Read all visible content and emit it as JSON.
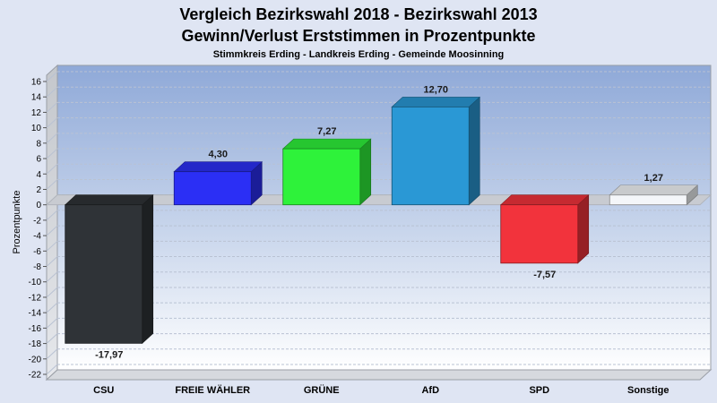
{
  "chart_data": {
    "type": "bar",
    "title": "Vergleich Bezirkswahl 2018 - Bezirkswahl 2013",
    "subtitle": "Gewinn/Verlust Erststimmen in Prozentpunkte",
    "caption": "Stimmkreis Erding - Landkreis Erding - Gemeinde Moosinning",
    "ylabel": "Prozentpunkte",
    "xlabel": "",
    "ylim": [
      -22,
      16
    ],
    "yticks": [
      16,
      14,
      12,
      10,
      8,
      6,
      4,
      2,
      0,
      -2,
      -4,
      -6,
      -8,
      -10,
      -12,
      -14,
      -16,
      -18,
      -20,
      -22
    ],
    "grid": true,
    "legend": "none",
    "categories": [
      "CSU",
      "FREIE WÄHLER",
      "GRÜNE",
      "AfD",
      "SPD",
      "Sonstige"
    ],
    "values": [
      -17.97,
      4.3,
      7.27,
      12.7,
      -7.57,
      1.27
    ],
    "value_labels": [
      "-17,97",
      "4,30",
      "7,27",
      "12,70",
      "-7,57",
      "1,27"
    ],
    "colors": [
      "#2f3337",
      "#2b2ff5",
      "#2ef23a",
      "#2a98d5",
      "#f2333c",
      "#f4f6f9"
    ]
  }
}
